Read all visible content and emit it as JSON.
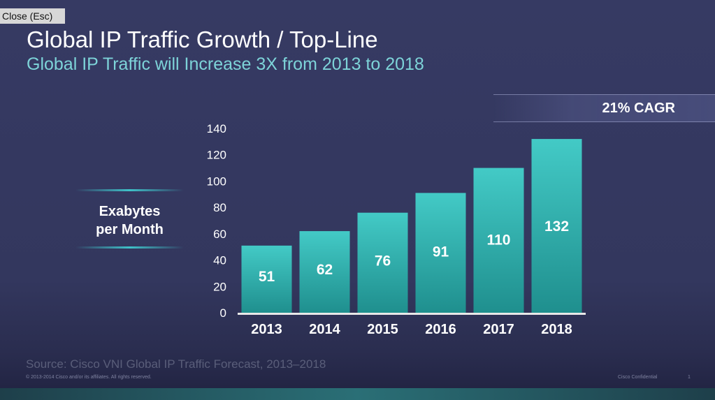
{
  "close_button": {
    "label": "Close (Esc)"
  },
  "slide": {
    "title": "Global IP Traffic Growth / Top-Line",
    "subtitle": "Global IP Traffic will Increase 3X from 2013 to 2018",
    "cagr": "21% CAGR",
    "y_label_line1": "Exabytes",
    "y_label_line2": "per Month",
    "source": "Source: Cisco VNI Global IP Traffic Forecast, 2013–2018",
    "copyright": "© 2013-2014  Cisco and/or its affiliates. All rights reserved.",
    "confidential": "Cisco Confidential",
    "page_number": "1"
  },
  "colors": {
    "bar_top": "#43cac6",
    "bar_bottom": "#1f8f8e",
    "axis": "#e8e8e8",
    "text": "#ffffff"
  },
  "chart_data": {
    "type": "bar",
    "categories": [
      "2013",
      "2014",
      "2015",
      "2016",
      "2017",
      "2018"
    ],
    "values": [
      51,
      62,
      76,
      91,
      110,
      132
    ],
    "ylabel": "Exabytes per Month",
    "ylim": [
      0,
      140
    ],
    "yticks": [
      0,
      20,
      40,
      60,
      80,
      100,
      120,
      140
    ],
    "grid": false,
    "data_labels": true
  }
}
